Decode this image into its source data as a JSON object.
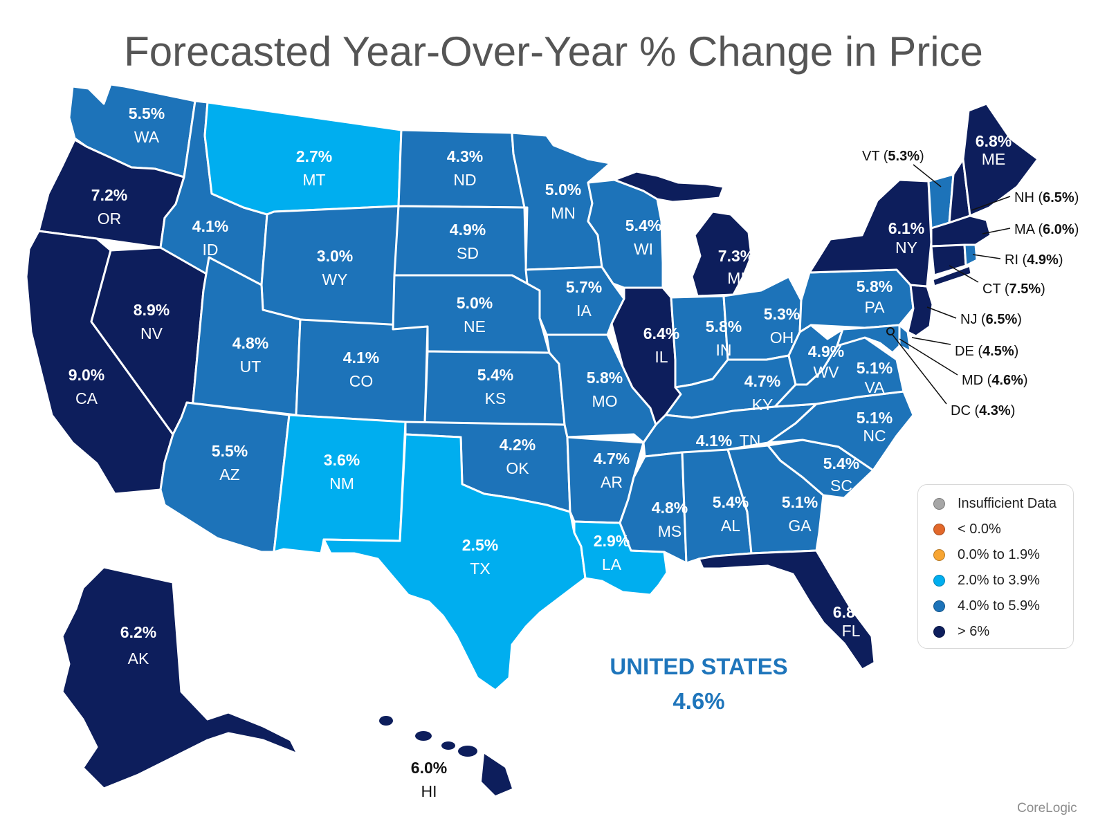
{
  "title": "Forecasted Year-Over-Year % Change in Price",
  "colors": {
    "gt6": "#0d1e5c",
    "r4to5_9": "#1d73b9",
    "r2to3_9": "#00aeef",
    "r0to1_9": "#f7a532",
    "lt0": "#e2682a",
    "insufficient": "#a6a6a6"
  },
  "states": {
    "WA": {
      "abbr": "WA",
      "value": "5.5%"
    },
    "OR": {
      "abbr": "OR",
      "value": "7.2%"
    },
    "CA": {
      "abbr": "CA",
      "value": "9.0%"
    },
    "NV": {
      "abbr": "NV",
      "value": "8.9%"
    },
    "ID": {
      "abbr": "ID",
      "value": "4.1%"
    },
    "MT": {
      "abbr": "MT",
      "value": "2.7%"
    },
    "WY": {
      "abbr": "WY",
      "value": "3.0%"
    },
    "UT": {
      "abbr": "UT",
      "value": "4.8%"
    },
    "AZ": {
      "abbr": "AZ",
      "value": "5.5%"
    },
    "CO": {
      "abbr": "CO",
      "value": "4.1%"
    },
    "NM": {
      "abbr": "NM",
      "value": "3.6%"
    },
    "ND": {
      "abbr": "ND",
      "value": "4.3%"
    },
    "SD": {
      "abbr": "SD",
      "value": "4.9%"
    },
    "NE": {
      "abbr": "NE",
      "value": "5.0%"
    },
    "KS": {
      "abbr": "KS",
      "value": "5.4%"
    },
    "OK": {
      "abbr": "OK",
      "value": "4.2%"
    },
    "TX": {
      "abbr": "TX",
      "value": "2.5%"
    },
    "MN": {
      "abbr": "MN",
      "value": "5.0%"
    },
    "IA": {
      "abbr": "IA",
      "value": "5.7%"
    },
    "MO": {
      "abbr": "MO",
      "value": "5.8%"
    },
    "AR": {
      "abbr": "AR",
      "value": "4.7%"
    },
    "LA": {
      "abbr": "LA",
      "value": "2.9%"
    },
    "WI": {
      "abbr": "WI",
      "value": "5.4%"
    },
    "IL": {
      "abbr": "IL",
      "value": "6.4%"
    },
    "MI": {
      "abbr": "MI",
      "value": "7.3%"
    },
    "IN": {
      "abbr": "IN",
      "value": "5.8%"
    },
    "OH": {
      "abbr": "OH",
      "value": "5.3%"
    },
    "KY": {
      "abbr": "KY",
      "value": "4.7%"
    },
    "TN": {
      "abbr": "TN",
      "value": "4.1%"
    },
    "MS": {
      "abbr": "MS",
      "value": "4.8%"
    },
    "AL": {
      "abbr": "AL",
      "value": "5.4%"
    },
    "GA": {
      "abbr": "GA",
      "value": "5.1%"
    },
    "FL": {
      "abbr": "FL",
      "value": "6.8%"
    },
    "SC": {
      "abbr": "SC",
      "value": "5.4%"
    },
    "NC": {
      "abbr": "NC",
      "value": "5.1%"
    },
    "VA": {
      "abbr": "VA",
      "value": "5.1%"
    },
    "WV": {
      "abbr": "WV",
      "value": "4.9%"
    },
    "PA": {
      "abbr": "PA",
      "value": "5.8%"
    },
    "NY": {
      "abbr": "NY",
      "value": "6.1%"
    },
    "ME": {
      "abbr": "ME",
      "value": "6.8%"
    },
    "AK": {
      "abbr": "AK",
      "value": "6.2%"
    },
    "HI": {
      "abbr": "HI",
      "value": "6.0%"
    }
  },
  "callouts": {
    "VT": {
      "abbr": "VT",
      "value": "5.3%"
    },
    "NH": {
      "abbr": "NH",
      "value": "6.5%"
    },
    "MA": {
      "abbr": "MA",
      "value": "6.0%"
    },
    "RI": {
      "abbr": "RI",
      "value": "4.9%"
    },
    "CT": {
      "abbr": "CT",
      "value": "7.5%"
    },
    "NJ": {
      "abbr": "NJ",
      "value": "6.5%"
    },
    "DE": {
      "abbr": "DE",
      "value": "4.5%"
    },
    "MD": {
      "abbr": "MD",
      "value": "4.6%"
    },
    "DC": {
      "abbr": "DC",
      "value": "4.3%"
    }
  },
  "legend": [
    {
      "label": "Insufficient Data",
      "color": "#a6a6a6"
    },
    {
      "label": "< 0.0%",
      "color": "#e2682a"
    },
    {
      "label": "0.0% to 1.9%",
      "color": "#f7a532"
    },
    {
      "label": "2.0% to 3.9%",
      "color": "#00aeef"
    },
    {
      "label": "4.0% to 5.9%",
      "color": "#1d73b9"
    },
    {
      "label": "> 6%",
      "color": "#0d1e5c"
    }
  ],
  "national": {
    "name": "UNITED STATES",
    "value": "4.6%"
  },
  "source": "CoreLogic"
}
